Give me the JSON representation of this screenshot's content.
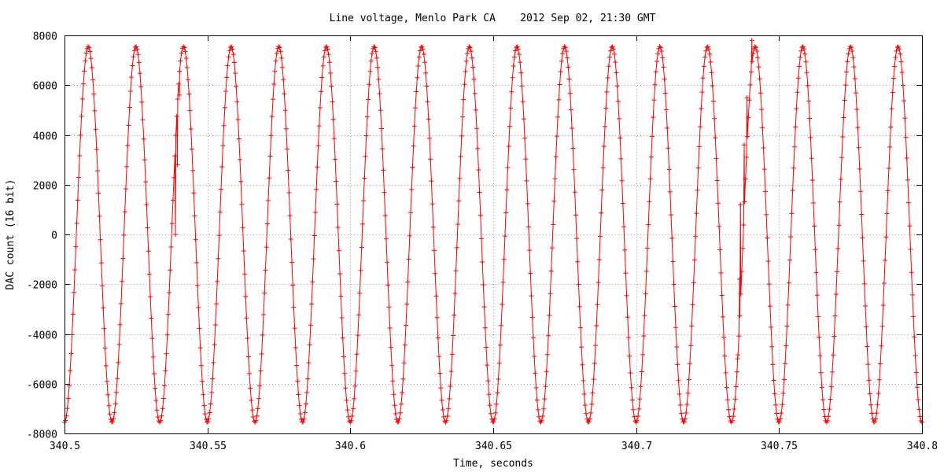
{
  "chart_data": {
    "type": "line",
    "title": "Line voltage, Menlo Park CA    2012 Sep 02, 21:30 GMT",
    "xlabel": "Time, seconds",
    "ylabel": "DAC count (16 bit)",
    "xlim": [
      340.5,
      340.8
    ],
    "ylim": [
      -8000,
      8000
    ],
    "grid": true,
    "legend": "none",
    "x_ticks": [
      340.5,
      340.55,
      340.6,
      340.65,
      340.7,
      340.75,
      340.8
    ],
    "x_tick_labels": [
      "340.5",
      "340.55",
      "340.6",
      "340.65",
      "340.7",
      "340.75",
      "340.8"
    ],
    "y_ticks": [
      -8000,
      -6000,
      -4000,
      -2000,
      0,
      2000,
      4000,
      6000,
      8000
    ],
    "y_tick_labels": [
      "-8000",
      "-6000",
      "-4000",
      "-2000",
      "0",
      "2000",
      "4000",
      "6000",
      "8000"
    ],
    "series_color": "#ff0000",
    "marker": "plus",
    "waveform": {
      "shape": "sinusoid",
      "frequency_hz": 60,
      "amplitude": 7550,
      "peak_time": 340.5083,
      "sample_step": 0.00033
    },
    "glitches": [
      {
        "x": 340.5395,
        "y": 2800
      },
      {
        "x": 340.5402,
        "y": 5600
      },
      {
        "x": 340.5388,
        "y": 0
      },
      {
        "x": 340.7362,
        "y": -1800
      },
      {
        "x": 340.7355,
        "y": -5000
      },
      {
        "x": 340.7365,
        "y": 1200
      },
      {
        "x": 340.7378,
        "y": 3600
      },
      {
        "x": 340.7388,
        "y": 5500
      },
      {
        "x": 340.7405,
        "y": 7800
      }
    ]
  }
}
